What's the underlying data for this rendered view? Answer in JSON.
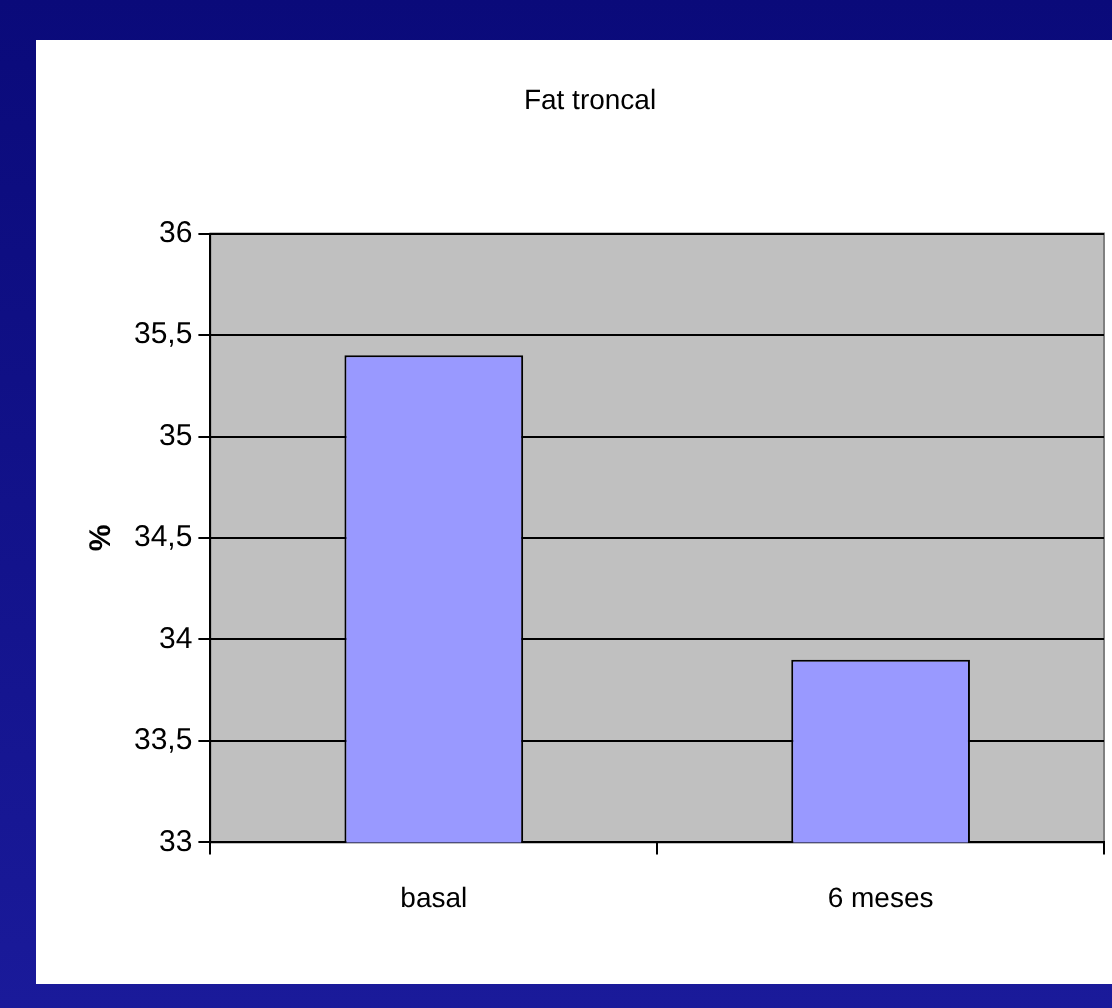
{
  "chart_data": {
    "type": "bar",
    "title": "Fat troncal",
    "ylabel": "%",
    "categories": [
      "basal",
      "6 meses"
    ],
    "values": [
      35.4,
      33.9
    ],
    "color": "#9999ff",
    "ylim": [
      33,
      36
    ],
    "yticks": [
      33,
      {
        "value": 33.5,
        "label": "33,5"
      },
      34,
      {
        "value": 34.5,
        "label": "34,5"
      },
      35,
      {
        "value": 35.5,
        "label": "35,5"
      },
      36
    ],
    "grid": "y",
    "legend": false
  }
}
